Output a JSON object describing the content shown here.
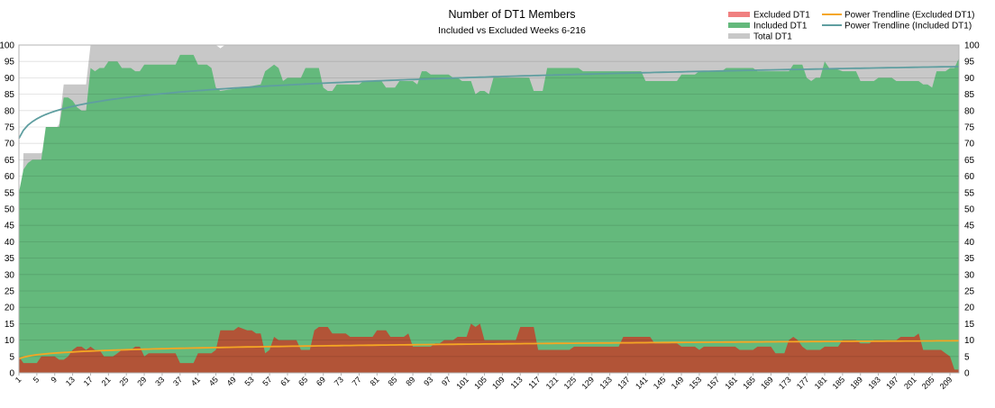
{
  "chart_data": {
    "type": "area",
    "title": "Number of DT1 Members",
    "subtitle": "Included vs Excluded Weeks 6-216",
    "xlabel": "",
    "ylabel": "",
    "ylim": [
      0,
      100
    ],
    "ytick_step": 5,
    "grid": true,
    "legend_position": "top-right",
    "x_range": [
      1,
      211
    ],
    "x_tick_start": 1,
    "x_tick_step": 4,
    "series": [
      {
        "name": "Total DT1",
        "color": "#c8c8c8",
        "points": [
          [
            1,
            6
          ],
          [
            2,
            67
          ],
          [
            5,
            67
          ],
          [
            6,
            67
          ],
          [
            10,
            76
          ],
          [
            11,
            88
          ],
          [
            16,
            88
          ],
          [
            17,
            100
          ],
          [
            45,
            100
          ],
          [
            46,
            99
          ],
          [
            47,
            100
          ],
          [
            211,
            100
          ]
        ]
      },
      {
        "name": "Included DT1",
        "color": "#64b97c",
        "points": [
          [
            1,
            55
          ],
          [
            2,
            62
          ],
          [
            3,
            64
          ],
          [
            4,
            65
          ],
          [
            6,
            65
          ],
          [
            7,
            75
          ],
          [
            9,
            75
          ],
          [
            10,
            75
          ],
          [
            11,
            84
          ],
          [
            12,
            84
          ],
          [
            13,
            83
          ],
          [
            14,
            81
          ],
          [
            15,
            80
          ],
          [
            16,
            80
          ],
          [
            17,
            93
          ],
          [
            18,
            92
          ],
          [
            19,
            93
          ],
          [
            20,
            93
          ],
          [
            21,
            95
          ],
          [
            22,
            95
          ],
          [
            23,
            95
          ],
          [
            24,
            93
          ],
          [
            25,
            93
          ],
          [
            26,
            93
          ],
          [
            27,
            92
          ],
          [
            28,
            92
          ],
          [
            29,
            94
          ],
          [
            30,
            94
          ],
          [
            36,
            94
          ],
          [
            37,
            97
          ],
          [
            40,
            97
          ],
          [
            41,
            94
          ],
          [
            43,
            94
          ],
          [
            44,
            93
          ],
          [
            45,
            87
          ],
          [
            46,
            86
          ],
          [
            51,
            87
          ],
          [
            55,
            88
          ],
          [
            56,
            92
          ],
          [
            57,
            93
          ],
          [
            58,
            94
          ],
          [
            59,
            93
          ],
          [
            60,
            89
          ],
          [
            61,
            90
          ],
          [
            64,
            90
          ],
          [
            65,
            93
          ],
          [
            68,
            93
          ],
          [
            69,
            87
          ],
          [
            70,
            86
          ],
          [
            71,
            86
          ],
          [
            72,
            88
          ],
          [
            77,
            88
          ],
          [
            78,
            89
          ],
          [
            82,
            89
          ],
          [
            83,
            87
          ],
          [
            85,
            87
          ],
          [
            86,
            89
          ],
          [
            89,
            89
          ],
          [
            90,
            88
          ],
          [
            91,
            92
          ],
          [
            92,
            92
          ],
          [
            93,
            91
          ],
          [
            97,
            91
          ],
          [
            98,
            90
          ],
          [
            99,
            90
          ],
          [
            100,
            89
          ],
          [
            101,
            89
          ],
          [
            102,
            89
          ],
          [
            103,
            85
          ],
          [
            104,
            86
          ],
          [
            105,
            86
          ],
          [
            106,
            85
          ],
          [
            107,
            90
          ],
          [
            115,
            90
          ],
          [
            116,
            86
          ],
          [
            118,
            86
          ],
          [
            119,
            93
          ],
          [
            126,
            93
          ],
          [
            127,
            92
          ],
          [
            140,
            92
          ],
          [
            141,
            89
          ],
          [
            148,
            89
          ],
          [
            149,
            91
          ],
          [
            152,
            91
          ],
          [
            153,
            92
          ],
          [
            158,
            92
          ],
          [
            159,
            93
          ],
          [
            165,
            93
          ],
          [
            166,
            92
          ],
          [
            173,
            92
          ],
          [
            174,
            94
          ],
          [
            175,
            94
          ],
          [
            176,
            94
          ],
          [
            177,
            90
          ],
          [
            178,
            89
          ],
          [
            179,
            90
          ],
          [
            180,
            90
          ],
          [
            181,
            95
          ],
          [
            182,
            93
          ],
          [
            183,
            93
          ],
          [
            185,
            92
          ],
          [
            188,
            92
          ],
          [
            189,
            89
          ],
          [
            192,
            89
          ],
          [
            193,
            90
          ],
          [
            196,
            90
          ],
          [
            197,
            89
          ],
          [
            202,
            89
          ],
          [
            203,
            88
          ],
          [
            204,
            88
          ],
          [
            205,
            87
          ],
          [
            206,
            92
          ],
          [
            207,
            92
          ],
          [
            208,
            92
          ],
          [
            209,
            93
          ],
          [
            210,
            93
          ],
          [
            211,
            96
          ]
        ]
      },
      {
        "name": "Excluded DT1",
        "color": "#b25437",
        "points": [
          [
            1,
            5
          ],
          [
            2,
            3
          ],
          [
            3,
            3
          ],
          [
            4,
            3
          ],
          [
            5,
            3
          ],
          [
            6,
            5
          ],
          [
            7,
            5
          ],
          [
            8,
            5
          ],
          [
            9,
            5
          ],
          [
            10,
            4
          ],
          [
            11,
            4
          ],
          [
            12,
            5
          ],
          [
            13,
            7
          ],
          [
            14,
            8
          ],
          [
            15,
            8
          ],
          [
            16,
            7
          ],
          [
            17,
            8
          ],
          [
            18,
            7
          ],
          [
            19,
            7
          ],
          [
            20,
            5
          ],
          [
            21,
            5
          ],
          [
            22,
            5
          ],
          [
            23,
            6
          ],
          [
            24,
            7
          ],
          [
            25,
            7
          ],
          [
            26,
            7
          ],
          [
            27,
            8
          ],
          [
            28,
            8
          ],
          [
            29,
            5
          ],
          [
            30,
            6
          ],
          [
            36,
            6
          ],
          [
            37,
            3
          ],
          [
            40,
            3
          ],
          [
            41,
            6
          ],
          [
            44,
            6
          ],
          [
            45,
            7
          ],
          [
            46,
            13
          ],
          [
            49,
            13
          ],
          [
            50,
            14
          ],
          [
            52,
            13
          ],
          [
            53,
            13
          ],
          [
            54,
            12
          ],
          [
            55,
            12
          ],
          [
            56,
            6
          ],
          [
            57,
            7
          ],
          [
            58,
            11
          ],
          [
            59,
            10
          ],
          [
            63,
            10
          ],
          [
            64,
            7
          ],
          [
            65,
            7
          ],
          [
            66,
            7
          ],
          [
            67,
            13
          ],
          [
            68,
            14
          ],
          [
            70,
            14
          ],
          [
            71,
            12
          ],
          [
            74,
            12
          ],
          [
            75,
            11
          ],
          [
            80,
            11
          ],
          [
            81,
            13
          ],
          [
            83,
            13
          ],
          [
            84,
            11
          ],
          [
            87,
            11
          ],
          [
            88,
            12
          ],
          [
            89,
            8
          ],
          [
            93,
            8
          ],
          [
            94,
            9
          ],
          [
            95,
            9
          ],
          [
            96,
            10
          ],
          [
            97,
            10
          ],
          [
            98,
            10
          ],
          [
            99,
            11
          ],
          [
            101,
            11
          ],
          [
            102,
            15
          ],
          [
            103,
            14
          ],
          [
            104,
            15
          ],
          [
            105,
            10
          ],
          [
            112,
            10
          ],
          [
            113,
            14
          ],
          [
            116,
            14
          ],
          [
            117,
            7
          ],
          [
            124,
            7
          ],
          [
            125,
            8
          ],
          [
            130,
            8
          ],
          [
            131,
            8
          ],
          [
            135,
            8
          ],
          [
            136,
            11
          ],
          [
            142,
            11
          ],
          [
            143,
            9
          ],
          [
            148,
            9
          ],
          [
            149,
            8
          ],
          [
            152,
            8
          ],
          [
            153,
            7
          ],
          [
            154,
            8
          ],
          [
            161,
            8
          ],
          [
            162,
            7
          ],
          [
            165,
            7
          ],
          [
            166,
            8
          ],
          [
            169,
            8
          ],
          [
            170,
            6
          ],
          [
            172,
            6
          ],
          [
            173,
            10
          ],
          [
            174,
            11
          ],
          [
            175,
            10
          ],
          [
            176,
            8
          ],
          [
            177,
            7
          ],
          [
            180,
            7
          ],
          [
            181,
            8
          ],
          [
            184,
            8
          ],
          [
            185,
            10
          ],
          [
            188,
            10
          ],
          [
            189,
            9
          ],
          [
            191,
            9
          ],
          [
            192,
            10
          ],
          [
            197,
            10
          ],
          [
            198,
            11
          ],
          [
            201,
            11
          ],
          [
            202,
            12
          ],
          [
            203,
            7
          ],
          [
            207,
            7
          ],
          [
            208,
            6
          ],
          [
            209,
            5
          ],
          [
            210,
            1
          ],
          [
            211,
            1
          ]
        ]
      }
    ],
    "trendlines": [
      {
        "name": "Power Trendline (Excluded DT1)",
        "color": "#f5a623",
        "a": 4.3,
        "b": 0.154
      },
      {
        "name": "Power Trendline (Included DT1)",
        "color": "#5f9ea0",
        "a": 71.5,
        "b": 0.05
      }
    ],
    "legend": [
      {
        "name": "Excluded DT1",
        "kind": "area",
        "color": "#f08080"
      },
      {
        "name": "Included DT1",
        "kind": "area",
        "color": "#64b97c"
      },
      {
        "name": "Total DT1",
        "kind": "area",
        "color": "#c8c8c8"
      },
      {
        "name": "Power Trendline (Excluded DT1)",
        "kind": "line",
        "color": "#f5a623"
      },
      {
        "name": "Power Trendline (Included DT1)",
        "kind": "line",
        "color": "#5f9ea0"
      }
    ]
  }
}
